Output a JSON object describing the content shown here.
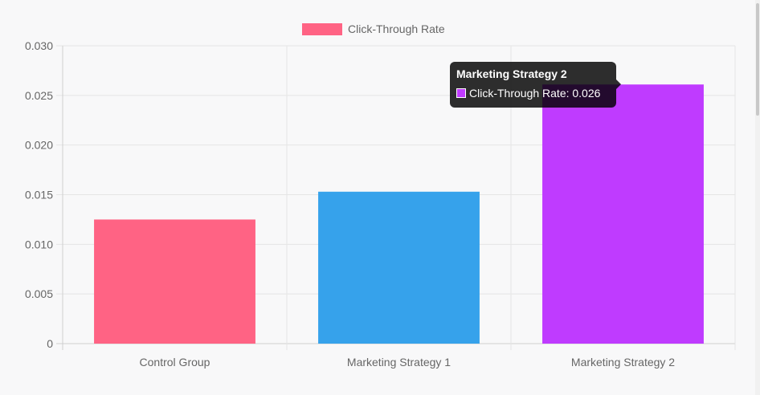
{
  "chart_data": {
    "type": "bar",
    "categories": [
      "Control Group",
      "Marketing Strategy 1",
      "Marketing Strategy 2"
    ],
    "series": [
      {
        "name": "Click-Through Rate",
        "values": [
          0.0125,
          0.0153,
          0.0261
        ],
        "colors": [
          "#ff6384",
          "#36a2eb",
          "#bf3bff"
        ]
      }
    ],
    "ylim": [
      0,
      0.03
    ],
    "yticks": [
      "0",
      "0.005",
      "0.010",
      "0.015",
      "0.020",
      "0.025",
      "0.030"
    ],
    "grid": true,
    "legend_position": "top"
  },
  "legend": {
    "label": "Click-Through Rate",
    "color": "#ff6384"
  },
  "tooltip": {
    "title": "Marketing Strategy 2",
    "label": "Click-Through Rate: 0.026",
    "color": "#bf3bff"
  }
}
